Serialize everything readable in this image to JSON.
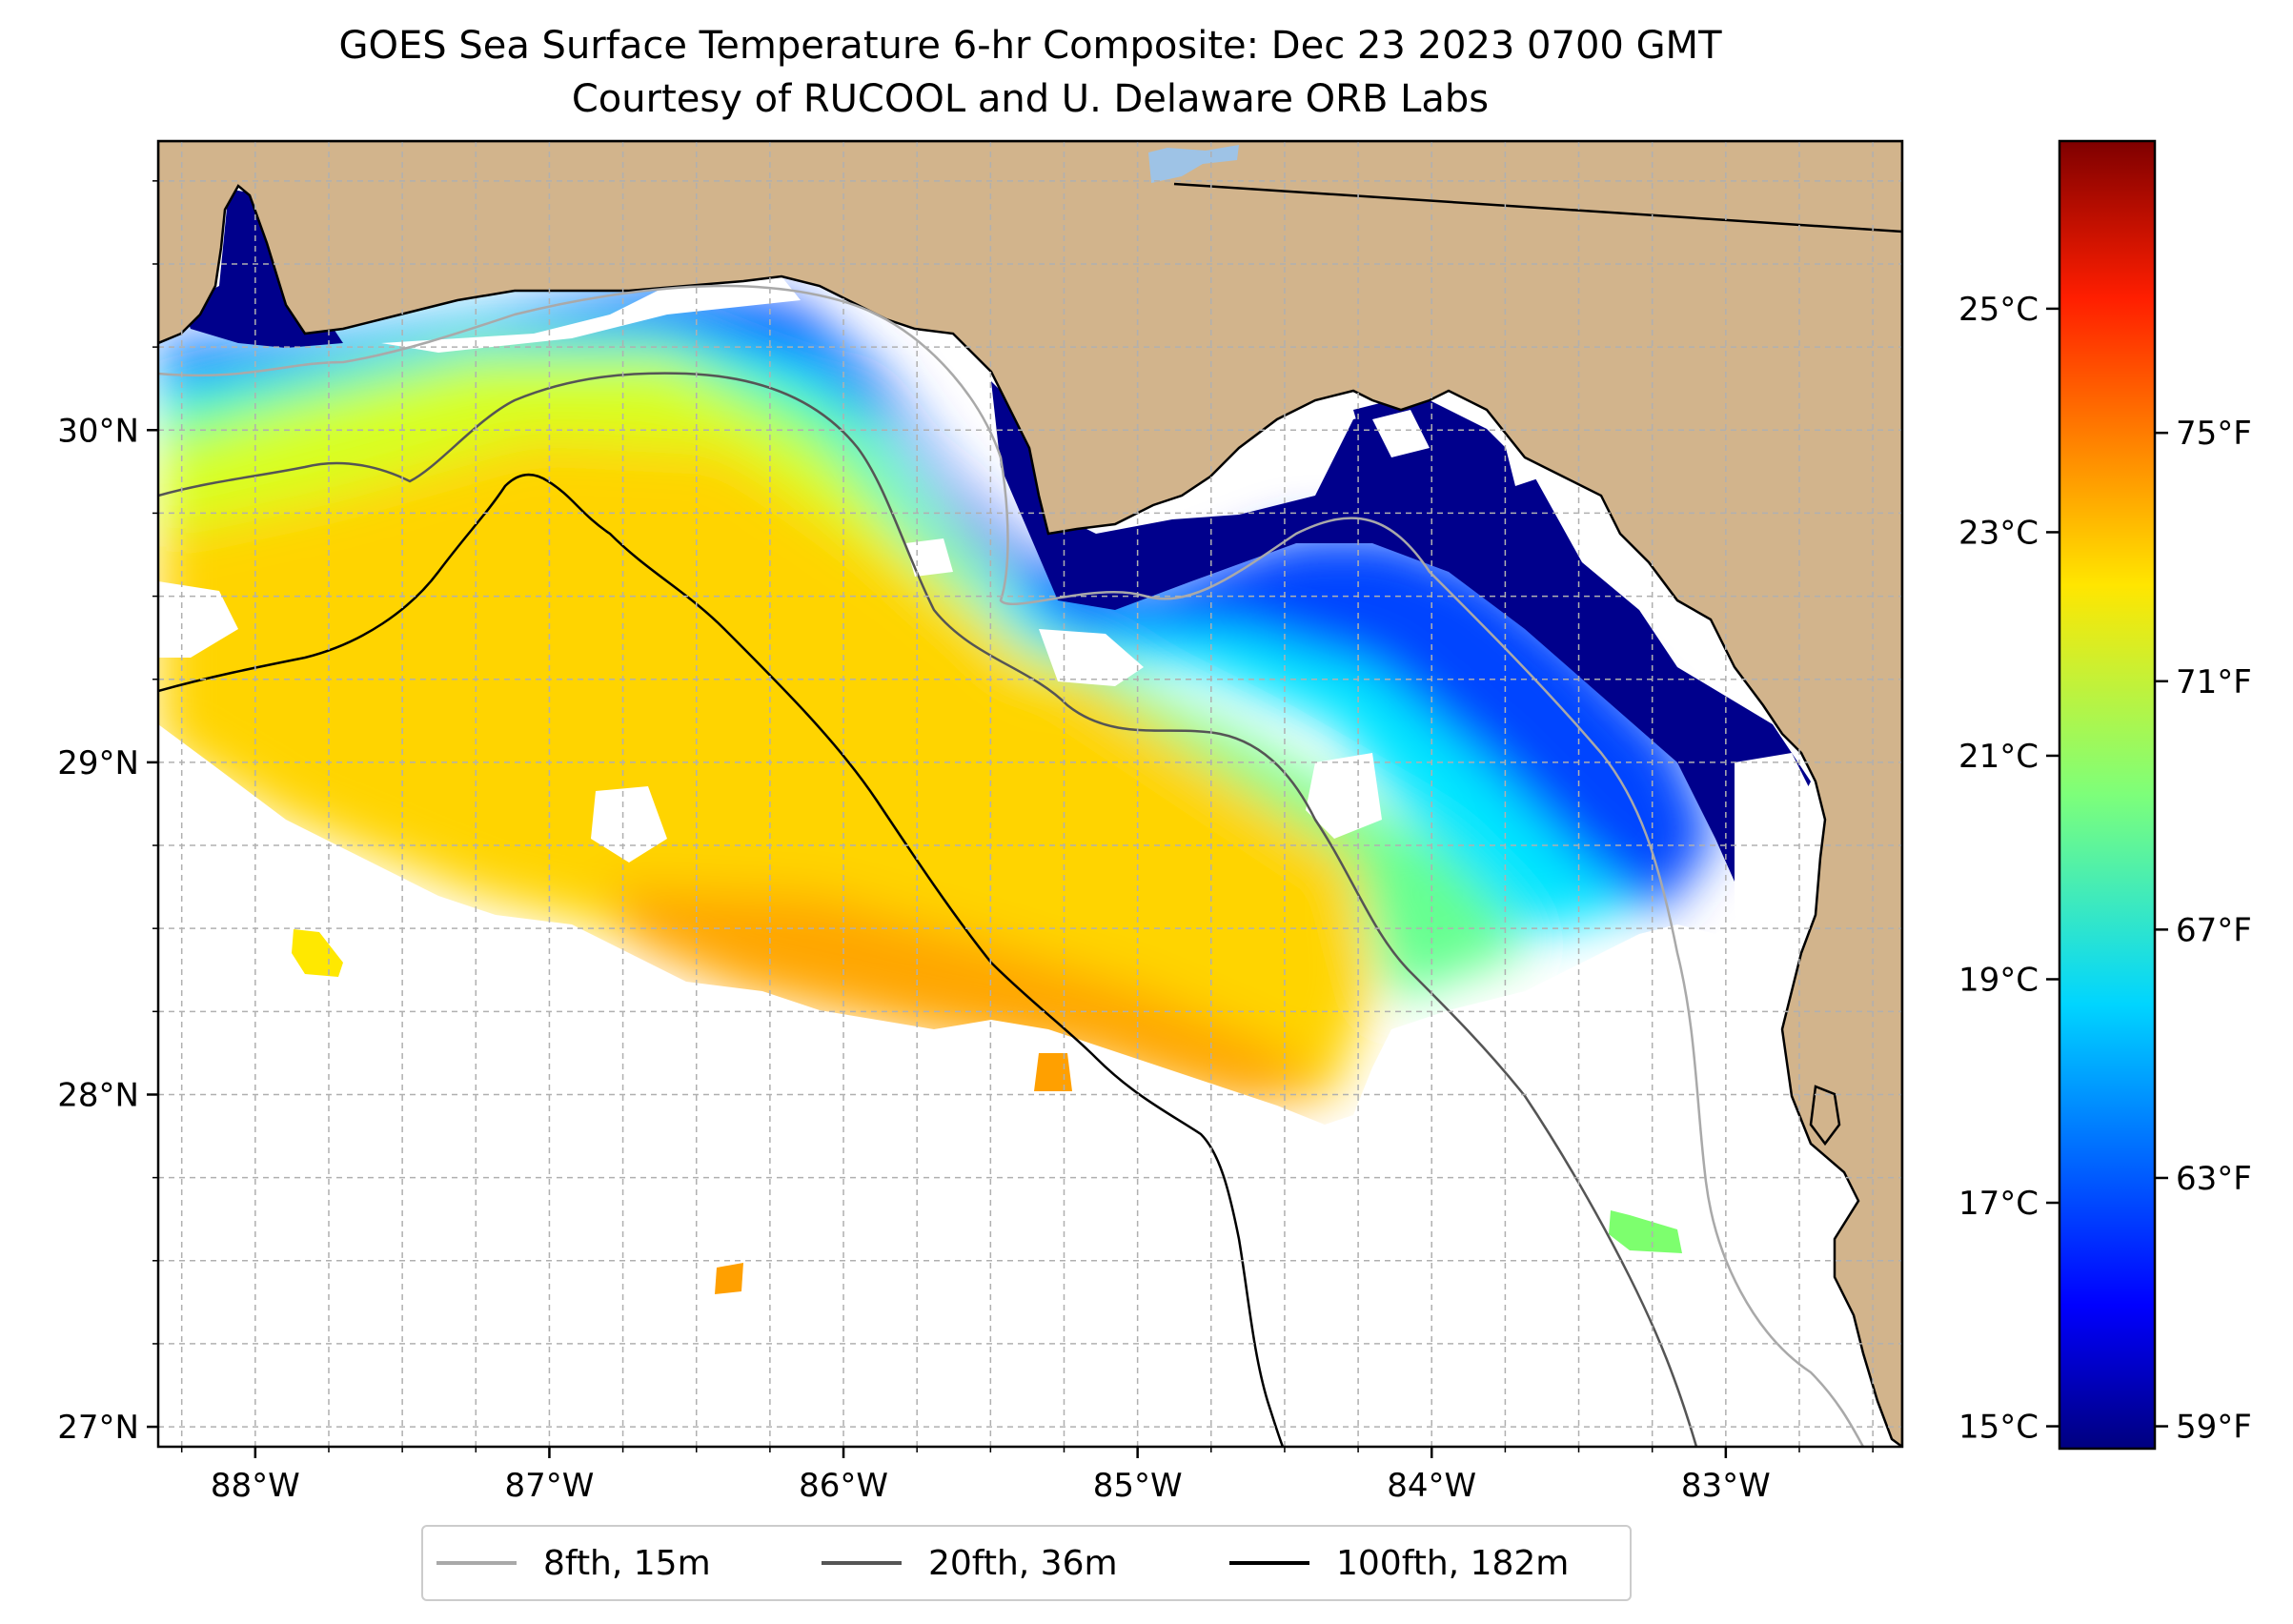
{
  "title": {
    "line1": "GOES Sea Surface Temperature 6-hr Composite: Dec 23 2023 0700 GMT",
    "line2": "Courtesy of RUCOOL and U. Delaware ORB Labs"
  },
  "map": {
    "lon_range": [
      -88.33,
      -82.4
    ],
    "lat_range": [
      26.94,
      30.87
    ],
    "lon_ticks": [
      {
        "value": -88,
        "label": "88°W"
      },
      {
        "value": -87,
        "label": "87°W"
      },
      {
        "value": -86,
        "label": "86°W"
      },
      {
        "value": -85,
        "label": "85°W"
      },
      {
        "value": -84,
        "label": "84°W"
      },
      {
        "value": -83,
        "label": "83°W"
      }
    ],
    "lat_ticks": [
      {
        "value": 27,
        "label": "27°N"
      },
      {
        "value": 28,
        "label": "28°N"
      },
      {
        "value": 29,
        "label": "29°N"
      },
      {
        "value": 30,
        "label": "30°N"
      }
    ],
    "colors": {
      "land": "#d2b48c",
      "no_data": "#ffffff",
      "grid": "#b0b0b0",
      "coast": "#000000"
    }
  },
  "colorbar": {
    "range_c": [
      14.8,
      26.5
    ],
    "celsius_ticks": [
      {
        "value": 15,
        "label": "15°C"
      },
      {
        "value": 17,
        "label": "17°C"
      },
      {
        "value": 19,
        "label": "19°C"
      },
      {
        "value": 21,
        "label": "21°C"
      },
      {
        "value": 23,
        "label": "23°C"
      },
      {
        "value": 25,
        "label": "25°C"
      }
    ],
    "fahrenheit_ticks": [
      {
        "value": 59,
        "label": "59°F"
      },
      {
        "value": 63,
        "label": "63°F"
      },
      {
        "value": 67,
        "label": "67°F"
      },
      {
        "value": 71,
        "label": "71°F"
      },
      {
        "value": 75,
        "label": "75°F"
      }
    ]
  },
  "legend": {
    "items": [
      {
        "label": "8fth, 15m",
        "color": "#a9a9a9"
      },
      {
        "label": "20fth, 36m",
        "color": "#555555"
      },
      {
        "label": "100fth, 182m",
        "color": "#000000"
      }
    ]
  }
}
